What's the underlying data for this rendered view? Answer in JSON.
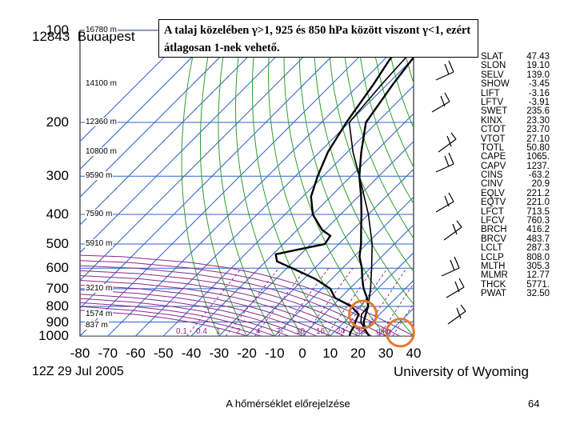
{
  "header": {
    "station_number": "12843",
    "station_name": "Budapest",
    "date": "12Z 29 Jul 2005",
    "source": "University of Wyoming"
  },
  "annotation": {
    "text": "A talaj közelében γ>1, 925 és 850 hPa között viszont γ<1, ezért átlagosan 1-nek vehető."
  },
  "footer": {
    "caption": "A hőmérséklet előrejelzése",
    "page": "64"
  },
  "indices": [
    {
      "key": "SLAT",
      "value": "47.43"
    },
    {
      "key": "SLON",
      "value": "19.10"
    },
    {
      "key": "SELV",
      "value": "139.0"
    },
    {
      "key": "SHOW",
      "value": "-3.45"
    },
    {
      "key": "LIFT",
      "value": "-3.16"
    },
    {
      "key": "LFTV",
      "value": "-3.91"
    },
    {
      "key": "SWET",
      "value": "235.6"
    },
    {
      "key": "KINX",
      "value": "23.30"
    },
    {
      "key": "CTOT",
      "value": "23.70"
    },
    {
      "key": "VTOT",
      "value": "27.10"
    },
    {
      "key": "TOTL",
      "value": "50.80"
    },
    {
      "key": "CAPE",
      "value": "1065."
    },
    {
      "key": "CAPV",
      "value": "1237."
    },
    {
      "key": "CINS",
      "value": "-63.2"
    },
    {
      "key": "CINV",
      "value": "20.9"
    },
    {
      "key": "EQLV",
      "value": "221.2"
    },
    {
      "key": "EQTV",
      "value": "221.0"
    },
    {
      "key": "LFCT",
      "value": "713.5"
    },
    {
      "key": "LFCV",
      "value": "760.3"
    },
    {
      "key": "BRCH",
      "value": "416.2"
    },
    {
      "key": "BRCV",
      "value": "483.7"
    },
    {
      "key": "LCLT",
      "value": "287.3"
    },
    {
      "key": "LCLP",
      "value": "808.0"
    },
    {
      "key": "MLTH",
      "value": "305.3"
    },
    {
      "key": "MLMR",
      "value": "12.77"
    },
    {
      "key": "THCK",
      "value": "5771."
    },
    {
      "key": "PWAT",
      "value": "32.50"
    }
  ],
  "mixing_ratio_labels": [
    "0.1",
    "0.4",
    "1",
    "2",
    "4",
    "7",
    "10",
    "16",
    "24",
    "32",
    "g/kg"
  ],
  "colors": {
    "grid": "#2c63c9",
    "dry_adiabat": "#2f9e2f",
    "moist_adiabat": "#8a2a8a",
    "profile": "#000000",
    "highlight_circle": "#e8782a"
  },
  "chart_data": {
    "type": "skew-t",
    "title": "12843 Budapest",
    "xlabel": "",
    "ylabel": "",
    "x_ticks": [
      "-80",
      "-70",
      "-60",
      "-50",
      "-40",
      "-30",
      "-20",
      "-10",
      "0",
      "10",
      "20",
      "30",
      "40"
    ],
    "xlim": [
      -80,
      40
    ],
    "pressure_ticks": [
      "100",
      "200",
      "300",
      "400",
      "500",
      "600",
      "700",
      "800",
      "900",
      "1000"
    ],
    "pressure_range": [
      1000,
      100
    ],
    "y_scale": "log",
    "height_labels": [
      {
        "pressure": 100,
        "label": "16780 m"
      },
      {
        "pressure": 150,
        "label": "14100 m"
      },
      {
        "pressure": 200,
        "label": "12360 m"
      },
      {
        "pressure": 250,
        "label": "10800 m"
      },
      {
        "pressure": 300,
        "label": "9590 m"
      },
      {
        "pressure": 400,
        "label": "7590 m"
      },
      {
        "pressure": 500,
        "label": "5910 m"
      },
      {
        "pressure": 700,
        "label": "3210 m"
      },
      {
        "pressure": 850,
        "label": "1574 m"
      },
      {
        "pressure": 925,
        "label": "837 m"
      }
    ],
    "series": [
      {
        "role": "temperature",
        "points": [
          [
            1000,
            24
          ],
          [
            975,
            22
          ],
          [
            950,
            20
          ],
          [
            925,
            18.5
          ],
          [
            900,
            17
          ],
          [
            850,
            15
          ],
          [
            800,
            13
          ],
          [
            750,
            9.5
          ],
          [
            700,
            5
          ],
          [
            650,
            1
          ],
          [
            600,
            -3
          ],
          [
            550,
            -8
          ],
          [
            500,
            -12
          ],
          [
            450,
            -17
          ],
          [
            400,
            -22.5
          ],
          [
            350,
            -29
          ],
          [
            300,
            -37
          ],
          [
            250,
            -45
          ],
          [
            200,
            -54
          ],
          [
            150,
            -58
          ],
          [
            125,
            -60
          ],
          [
            100,
            -62
          ]
        ]
      },
      {
        "role": "dewpoint",
        "points": [
          [
            1000,
            17
          ],
          [
            975,
            16
          ],
          [
            950,
            15.5
          ],
          [
            925,
            15
          ],
          [
            900,
            14
          ],
          [
            850,
            12.5
          ],
          [
            800,
            7
          ],
          [
            750,
            -2
          ],
          [
            700,
            -7
          ],
          [
            650,
            -16
          ],
          [
            600,
            -28
          ],
          [
            570,
            -36
          ],
          [
            540,
            -39
          ],
          [
            500,
            -25
          ],
          [
            470,
            -26
          ],
          [
            450,
            -31
          ],
          [
            400,
            -40
          ],
          [
            350,
            -47
          ],
          [
            300,
            -52
          ],
          [
            250,
            -57
          ],
          [
            200,
            -61
          ],
          [
            150,
            -65
          ],
          [
            125,
            -68
          ],
          [
            100,
            -70
          ]
        ]
      },
      {
        "role": "parcel",
        "points": [
          [
            1000,
            24
          ],
          [
            950,
            20
          ],
          [
            900,
            16
          ],
          [
            850,
            13.5
          ],
          [
            800,
            13
          ],
          [
            700,
            7.5
          ],
          [
            600,
            0.5
          ],
          [
            500,
            -8
          ],
          [
            400,
            -20
          ],
          [
            300,
            -37
          ],
          [
            250,
            -48
          ],
          [
            200,
            -60
          ],
          [
            150,
            -62
          ],
          [
            100,
            -64
          ]
        ]
      }
    ],
    "highlights": [
      {
        "pressure": 850,
        "temperature": 14
      },
      {
        "pressure": 975,
        "temperature": 34
      }
    ],
    "grid": true
  }
}
